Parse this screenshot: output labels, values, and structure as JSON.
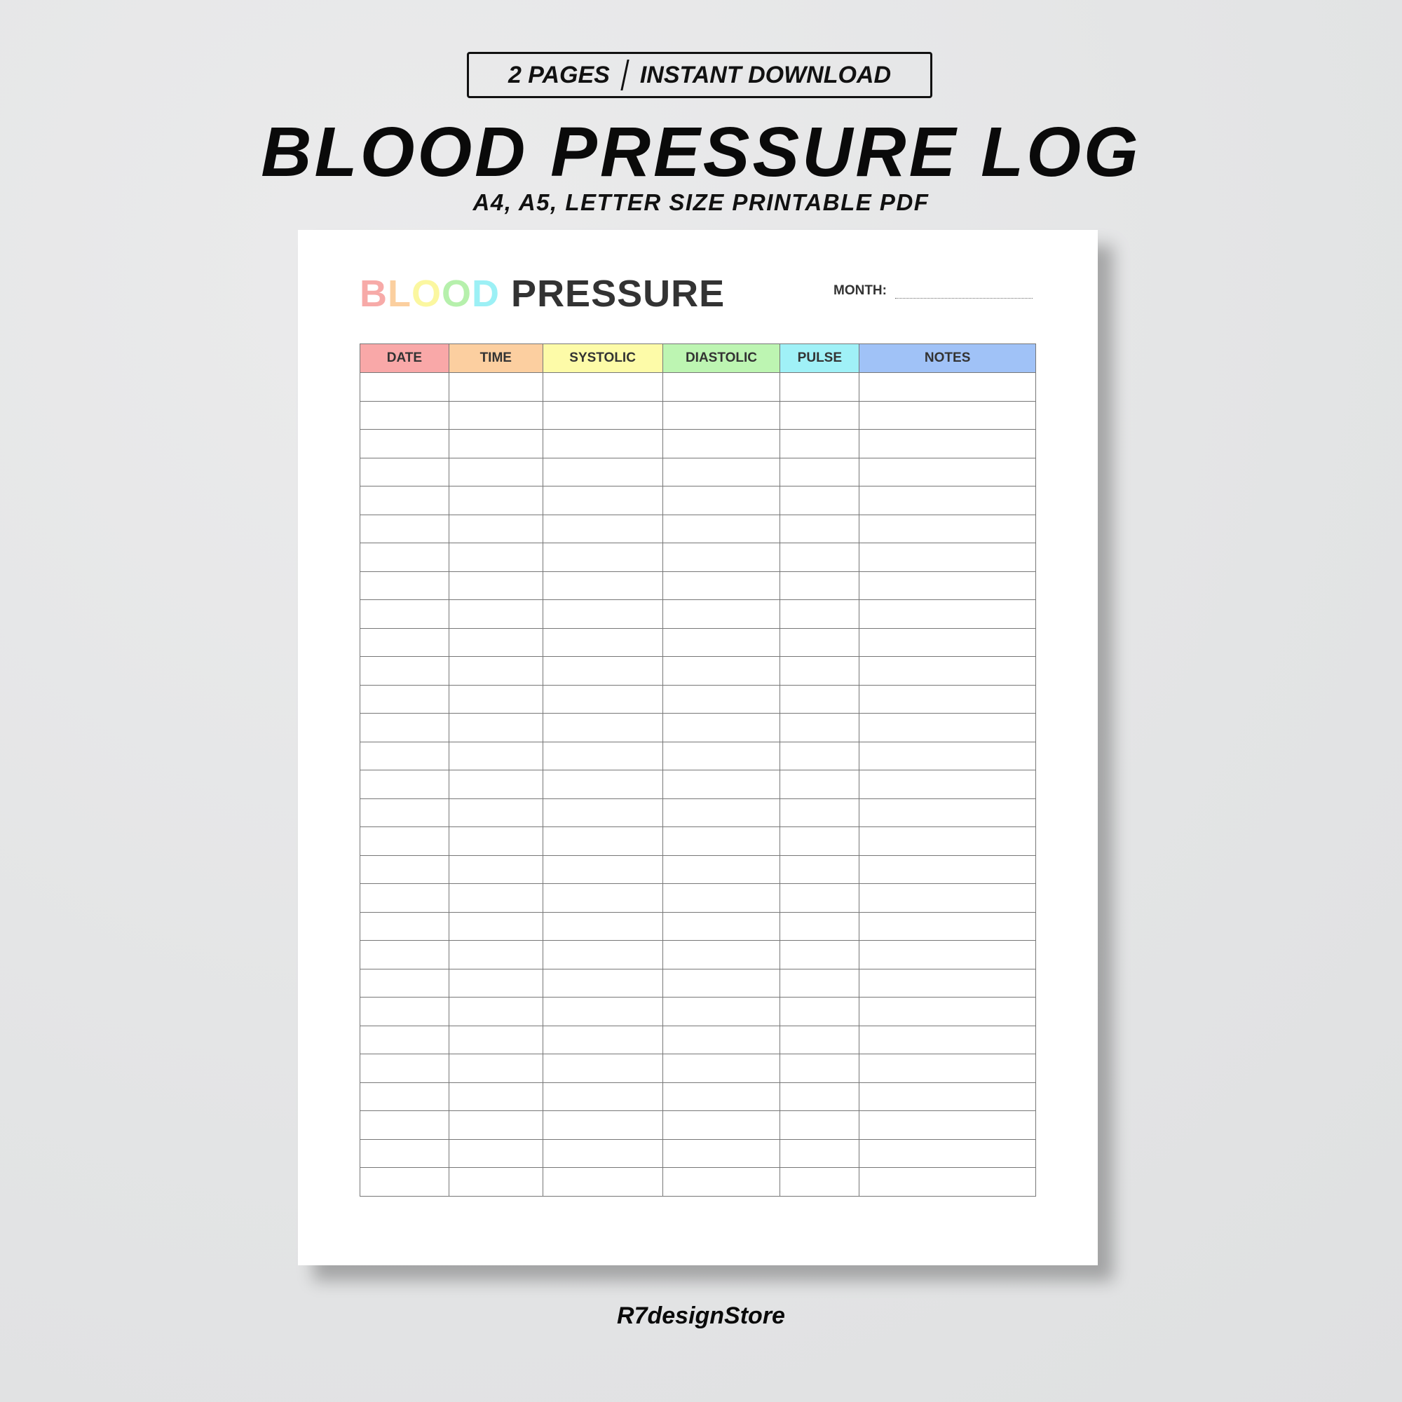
{
  "banner": {
    "badge_left": "2 PAGES",
    "badge_right": "INSTANT DOWNLOAD",
    "title": "BLOOD PRESSURE LOG",
    "subtitle": "A4, A5, LETTER SIZE PRINTABLE PDF"
  },
  "sheet": {
    "title_colored": [
      "B",
      "L",
      "O",
      "O",
      "D"
    ],
    "title_colors": [
      "#f7aaa8",
      "#fbcf9f",
      "#fbf7a0",
      "#b6f0ac",
      "#9cf0f5"
    ],
    "title_rest": "PRESSURE",
    "month_label": "MONTH:",
    "columns": [
      {
        "label": "DATE",
        "color": "#f9a8a8"
      },
      {
        "label": "TIME",
        "color": "#fccfa0"
      },
      {
        "label": "SYSTOLIC",
        "color": "#fdfba8"
      },
      {
        "label": "DIASTOLIC",
        "color": "#bdf5b2"
      },
      {
        "label": "PULSE",
        "color": "#a0f1f7"
      },
      {
        "label": "NOTES",
        "color": "#a0c2f7"
      }
    ]
  },
  "footer": {
    "brand": "R7designStore"
  }
}
